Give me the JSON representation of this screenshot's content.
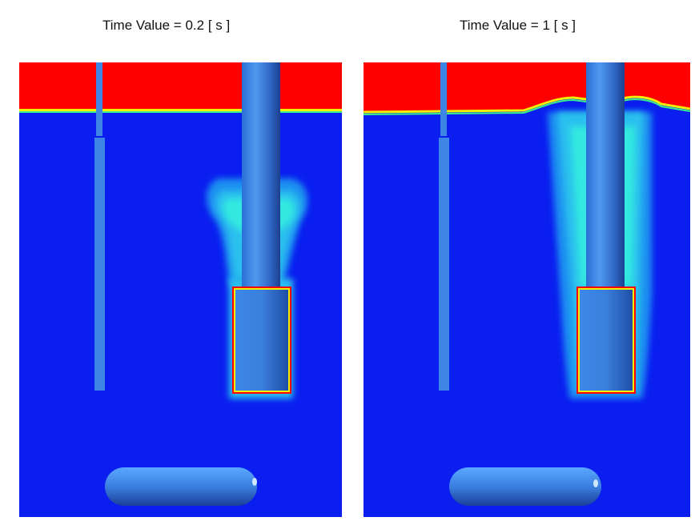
{
  "panels": [
    {
      "title": "Time Value = 0.2 [ s ]"
    },
    {
      "title": "Time Value = 1 [ s ]"
    }
  ],
  "colors": {
    "background_liquid": "#0a1ef0",
    "upper_phase": "#ff0000",
    "solid_surface": "#3d86e6",
    "plume_cyan": "#29e8e8",
    "plume_green": "#3cf08c",
    "plume_yellow": "#f0f000"
  }
}
